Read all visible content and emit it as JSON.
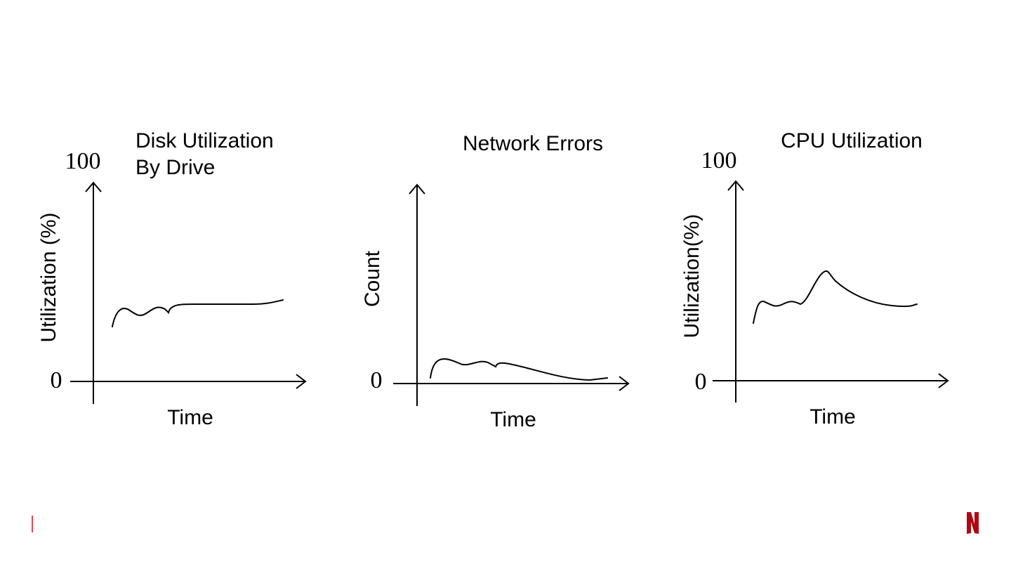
{
  "panels": [
    {
      "title_lines": [
        "Disk Utilization",
        "By Drive"
      ],
      "y_label": "Utilization (%)",
      "y_top": "100",
      "y_bottom": "0",
      "x_label": "Time"
    },
    {
      "title_lines": [
        "Network Errors"
      ],
      "y_label": "Count",
      "y_bottom": "0",
      "x_label": "Time"
    },
    {
      "title_lines": [
        "CPU Utilization"
      ],
      "y_label": "Utilization(%)",
      "y_top": "100",
      "y_bottom": "0",
      "x_label": "Time"
    }
  ]
}
